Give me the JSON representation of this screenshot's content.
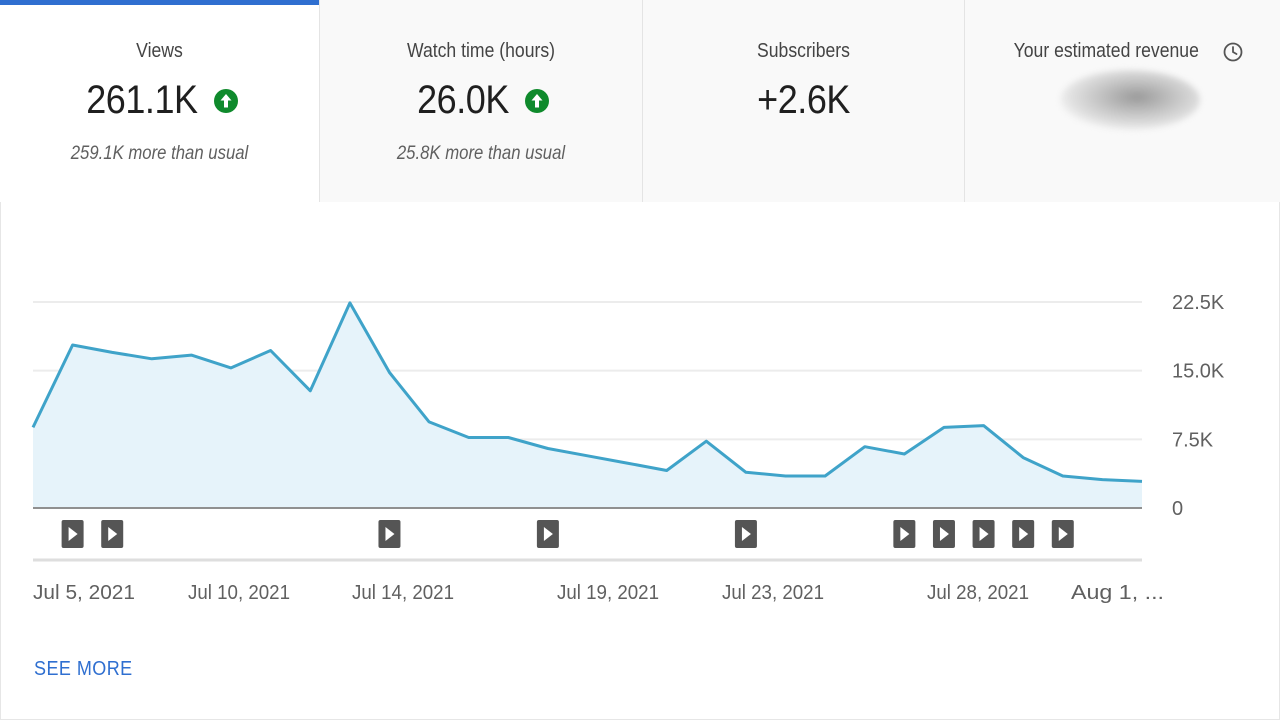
{
  "tabs": [
    {
      "label": "Views",
      "value": "261.1K",
      "note": "259.1K more than usual",
      "trend_icon": "arrow-up-icon",
      "selected": true
    },
    {
      "label": "Watch time (hours)",
      "value": "26.0K",
      "note": "25.8K more than usual",
      "trend_icon": "arrow-up-icon",
      "selected": false
    },
    {
      "label": "Subscribers",
      "value": "+2.6K",
      "selected": false
    },
    {
      "label": "Your estimated revenue",
      "icon": "clock-icon",
      "value_obscured": true,
      "selected": false
    }
  ],
  "colors": {
    "accent": "#2f6fd0",
    "line": "#3fa3c9",
    "area": "#e6f3fa",
    "trend_up": "#0f8a2c",
    "marker": "#555555"
  },
  "chart_data": {
    "type": "area",
    "x_tick_labels": [
      "Jul 5, 2021",
      "Jul 10, 2021",
      "Jul 14, 2021",
      "Jul 19, 2021",
      "Jul 23, 2021",
      "Jul 28, 2021",
      "Aug 1, ..."
    ],
    "y_tick_labels": [
      "22.5K",
      "15.0K",
      "7.5K",
      "0"
    ],
    "ylim": [
      0,
      22500
    ],
    "grid": true,
    "x": [
      "2021-07-04",
      "2021-07-05",
      "2021-07-06",
      "2021-07-07",
      "2021-07-08",
      "2021-07-09",
      "2021-07-10",
      "2021-07-11",
      "2021-07-12",
      "2021-07-13",
      "2021-07-14",
      "2021-07-15",
      "2021-07-16",
      "2021-07-17",
      "2021-07-18",
      "2021-07-19",
      "2021-07-20",
      "2021-07-21",
      "2021-07-22",
      "2021-07-23",
      "2021-07-24",
      "2021-07-25",
      "2021-07-26",
      "2021-07-27",
      "2021-07-28",
      "2021-07-29",
      "2021-07-30",
      "2021-07-31",
      "2021-08-01"
    ],
    "values": [
      8800,
      17800,
      17000,
      16300,
      16700,
      15300,
      17200,
      12800,
      22400,
      14800,
      9400,
      7700,
      7700,
      6500,
      5700,
      4900,
      4100,
      7300,
      3900,
      3500,
      3500,
      6700,
      5900,
      8800,
      9000,
      5500,
      3500,
      3100,
      2900
    ],
    "upload_markers": [
      "2021-07-05",
      "2021-07-06",
      "2021-07-13",
      "2021-07-17",
      "2021-07-22",
      "2021-07-26",
      "2021-07-27",
      "2021-07-28",
      "2021-07-29",
      "2021-07-30"
    ]
  },
  "see_more_label": "SEE MORE"
}
